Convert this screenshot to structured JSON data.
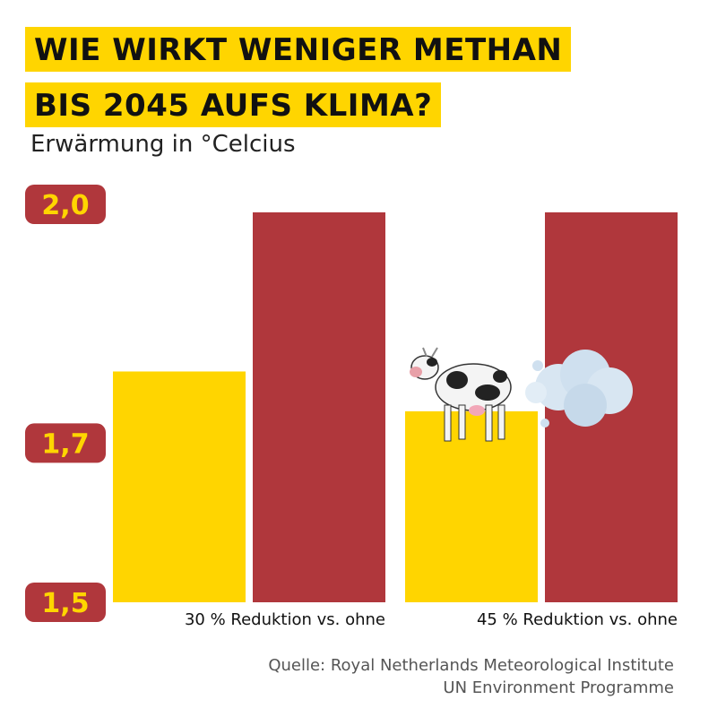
{
  "title_lines": [
    "WIE WIRKT WENIGER METHAN",
    "BIS 2045 AUFS KLIMA?"
  ],
  "subtitle": "Erwärmung in °Celcius",
  "chart_data": {
    "type": "bar",
    "ytick_labels": [
      "2,0",
      "1,7",
      "1,5"
    ],
    "yticks": [
      2.0,
      1.7,
      1.5
    ],
    "ylim": [
      1.5,
      2.0
    ],
    "categories": [
      "30 % Reduktion vs. ohne",
      "45 % Reduktion vs. ohne"
    ],
    "series": [
      {
        "color": "#ffd500",
        "values": [
          1.79,
          1.74
        ]
      },
      {
        "color": "#b0373c",
        "values": [
          1.99,
          1.99
        ]
      }
    ],
    "grid": false,
    "legend": "none"
  },
  "source": [
    "Quelle: Royal Netherlands Meteorological Institute",
    "UN Environment Programme"
  ],
  "decoration": {
    "icons": [
      "cow-icon",
      "cloud-puff-icon"
    ]
  },
  "colors": {
    "accent_yellow": "#ffd500",
    "accent_red": "#b0373c"
  }
}
